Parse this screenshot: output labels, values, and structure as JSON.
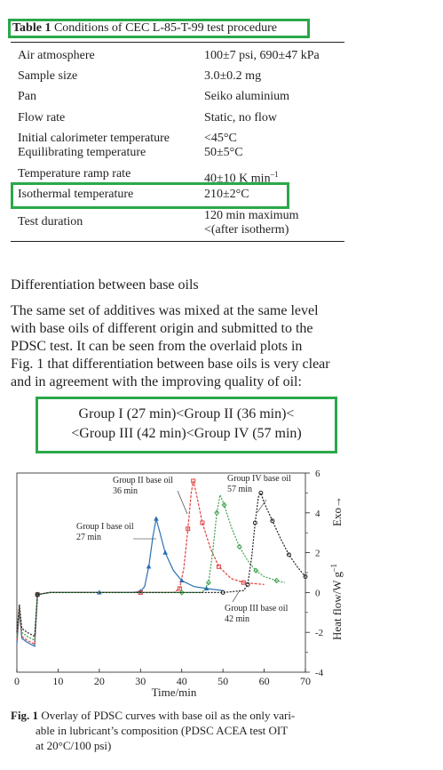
{
  "table": {
    "label": "Table 1",
    "title": "Conditions of CEC L-85-T-99 test procedure",
    "rows": [
      {
        "param": "Air atmosphere",
        "value": "100±7 psi, 690±47 kPa"
      },
      {
        "param": "Sample size",
        "value": "3.0±0.2 mg"
      },
      {
        "param": "Pan",
        "value": "Seiko aluminium"
      },
      {
        "param": "Flow rate",
        "value": "Static, no flow"
      },
      {
        "param": "Initial calorimeter temperature",
        "value": "<45°C"
      },
      {
        "param": "Equilibrating temperature",
        "value": "50±5°C"
      },
      {
        "param": "Temperature ramp rate",
        "value": "40±10 K min",
        "sup": "–1"
      },
      {
        "param": "Isothermal temperature",
        "value": "210±2°C"
      },
      {
        "param": "Test duration",
        "value": "120 min maximum",
        "value2": "<(after isotherm)"
      }
    ]
  },
  "section": {
    "heading": "Differentiation between base oils",
    "paragraph_lines": [
      "The same set of additives was mixed at the same level",
      "with base oils of different origin and submitted to the",
      "PDSC test. It can be seen from the overlaid plots in",
      "Fig. 1 that differentiation between base oils is very clear",
      "and in agreement with the improving quality of oil:"
    ],
    "formula_lines": [
      "Group I (27 min)<Group II (36 min)<",
      "<Group III (42 min)<Group IV (57 min)"
    ]
  },
  "figure": {
    "caption_label": "Fig. 1",
    "caption_lines": [
      "Overlay of PDSC curves with base oil as the only vari-",
      "able in lubricant’s composition (PDSC ACEA test OIT",
      "at 20°C/100 psi)"
    ]
  },
  "chart_data": {
    "type": "line",
    "xlabel": "Time/min",
    "ylabel": "Heat flow/W g",
    "ylabel_sup": "–1",
    "exo_label": "Exo→",
    "xlim": [
      0,
      70
    ],
    "ylim": [
      -4,
      6
    ],
    "x_ticks": [
      0,
      10,
      20,
      30,
      40,
      50,
      60,
      70
    ],
    "y_ticks": [
      -4,
      -2,
      0,
      2,
      4,
      6
    ],
    "grid": false,
    "series": [
      {
        "name": "Group I base oil 27 min",
        "color": "#2b6fb5",
        "marker": "triangle",
        "points": [
          [
            0,
            -2.6
          ],
          [
            0.6,
            -0.9
          ],
          [
            1.2,
            -2.3
          ],
          [
            2.5,
            -2.5
          ],
          [
            4.3,
            -2.7
          ],
          [
            5,
            -0.1
          ],
          [
            8,
            0
          ],
          [
            20,
            0
          ],
          [
            28,
            0
          ],
          [
            30,
            0.05
          ],
          [
            31,
            0.3
          ],
          [
            32,
            1.3
          ],
          [
            33,
            2.8
          ],
          [
            33.8,
            3.7
          ],
          [
            34.6,
            3.1
          ],
          [
            36,
            2
          ],
          [
            38,
            1.1
          ],
          [
            40,
            0.6
          ],
          [
            43,
            0.3
          ],
          [
            46,
            0.2
          ],
          [
            50,
            0.1
          ]
        ]
      },
      {
        "name": "Group II base oil 36 min",
        "color": "#e04040",
        "marker": "square",
        "points": [
          [
            0,
            -2.4
          ],
          [
            0.6,
            -0.8
          ],
          [
            1.2,
            -2.2
          ],
          [
            2.5,
            -2.4
          ],
          [
            4.3,
            -2.6
          ],
          [
            5,
            -0.1
          ],
          [
            8,
            0
          ],
          [
            30,
            0
          ],
          [
            38,
            0
          ],
          [
            39.5,
            0.2
          ],
          [
            40.5,
            1.2
          ],
          [
            41.5,
            3.2
          ],
          [
            42.3,
            5
          ],
          [
            42.8,
            5.6
          ],
          [
            43.5,
            5
          ],
          [
            45,
            3.5
          ],
          [
            47,
            2.2
          ],
          [
            49,
            1.3
          ],
          [
            52,
            0.7
          ],
          [
            55,
            0.5
          ],
          [
            60,
            0.4
          ]
        ]
      },
      {
        "name": "Group III base oil 42 min",
        "color": "#3aa04a",
        "marker": "diamond",
        "points": [
          [
            0,
            -2.2
          ],
          [
            0.6,
            -0.7
          ],
          [
            1.2,
            -2
          ],
          [
            2.5,
            -2.2
          ],
          [
            4.3,
            -2.4
          ],
          [
            5,
            -0.1
          ],
          [
            8,
            0
          ],
          [
            40,
            0
          ],
          [
            45,
            0
          ],
          [
            46.5,
            0.5
          ],
          [
            47.5,
            2
          ],
          [
            48.5,
            4
          ],
          [
            49.3,
            4.9
          ],
          [
            50.3,
            4.4
          ],
          [
            52,
            3.3
          ],
          [
            54,
            2.3
          ],
          [
            56,
            1.6
          ],
          [
            58,
            1.1
          ],
          [
            60,
            0.8
          ],
          [
            63,
            0.6
          ],
          [
            65,
            0.5
          ]
        ]
      },
      {
        "name": "Group IV base oil 57 min",
        "color": "#231f20",
        "marker": "circle",
        "points": [
          [
            0,
            -2
          ],
          [
            0.6,
            -0.6
          ],
          [
            1.2,
            -1.8
          ],
          [
            2.5,
            -2
          ],
          [
            4.3,
            -2.2
          ],
          [
            5,
            -0.1
          ],
          [
            8,
            0
          ],
          [
            50,
            0
          ],
          [
            55,
            0.1
          ],
          [
            56,
            0.4
          ],
          [
            57,
            1.8
          ],
          [
            57.8,
            3.5
          ],
          [
            58.6,
            4.8
          ],
          [
            59.2,
            5
          ],
          [
            60,
            4.5
          ],
          [
            62,
            3.6
          ],
          [
            64,
            2.7
          ],
          [
            66,
            1.9
          ],
          [
            68,
            1.3
          ],
          [
            70,
            0.8
          ]
        ]
      }
    ],
    "annotations": [
      {
        "lines": [
          "Group I base oil",
          "27 min"
        ],
        "series": 0
      },
      {
        "lines": [
          "Group II base oil",
          "36 min"
        ],
        "series": 1
      },
      {
        "lines": [
          "Group III base oil",
          "42 min"
        ],
        "series": 2
      },
      {
        "lines": [
          "Group IV base oil",
          "57 min"
        ],
        "series": 3
      }
    ]
  }
}
